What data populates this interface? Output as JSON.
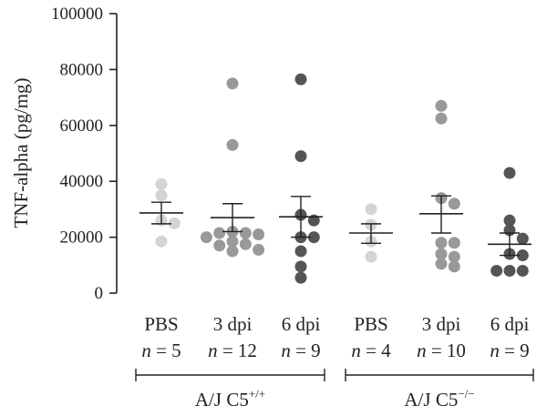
{
  "chart_data": {
    "type": "scatter",
    "ylabel": "TNF-alpha (pg/mg)",
    "ylim": [
      0,
      100000
    ],
    "yticks": [
      0,
      20000,
      40000,
      60000,
      80000,
      100000
    ],
    "ytick_labels": [
      "0",
      "20000",
      "40000",
      "60000",
      "80000",
      "100000"
    ],
    "grid": false,
    "categories": [
      {
        "label": "PBS",
        "n_label": "n = 5",
        "color": "#d4d4d4",
        "values": [
          35000,
          39000,
          26000,
          25000,
          18500
        ],
        "mean": 28700,
        "sem_low": 24800,
        "sem_high": 32500
      },
      {
        "label": "3 dpi",
        "n_label": "n = 12",
        "color": "#999999",
        "values": [
          75000,
          53000,
          22000,
          21500,
          21500,
          21000,
          20000,
          18500,
          17500,
          17000,
          15500,
          15000
        ],
        "mean": 27000,
        "sem_low": 22000,
        "sem_high": 32000
      },
      {
        "label": "6 dpi",
        "n_label": "n = 9",
        "color": "#555555",
        "values": [
          76500,
          49000,
          28000,
          26000,
          20000,
          20000,
          15000,
          9500,
          5500
        ],
        "mean": 27300,
        "sem_low": 20000,
        "sem_high": 34600
      },
      {
        "label": "PBS",
        "n_label": "n = 4",
        "color": "#d4d4d4",
        "values": [
          30000,
          24500,
          18500,
          13000
        ],
        "mean": 21500,
        "sem_low": 17800,
        "sem_high": 24800
      },
      {
        "label": "3 dpi",
        "n_label": "n = 10",
        "color": "#999999",
        "values": [
          67000,
          62500,
          34000,
          32000,
          18000,
          18000,
          14000,
          13000,
          10500,
          9500
        ],
        "mean": 28400,
        "sem_low": 21500,
        "sem_high": 34800
      },
      {
        "label": "6 dpi",
        "n_label": "n = 9",
        "color": "#555555",
        "values": [
          43000,
          26000,
          22500,
          19500,
          14000,
          13500,
          8000,
          8000,
          8000
        ],
        "mean": 17500,
        "sem_low": 13500,
        "sem_high": 21500
      }
    ],
    "groups": [
      {
        "label_base": "A/J C5",
        "label_sup": "+/+",
        "categories": [
          0,
          1,
          2
        ]
      },
      {
        "label_base": "A/J C5",
        "label_sup": "−/−",
        "categories": [
          3,
          4,
          5
        ]
      }
    ],
    "colors": {
      "axis": "#222222",
      "pbs": "#d4d4d4",
      "dpi3": "#999999",
      "dpi6": "#555555"
    }
  }
}
